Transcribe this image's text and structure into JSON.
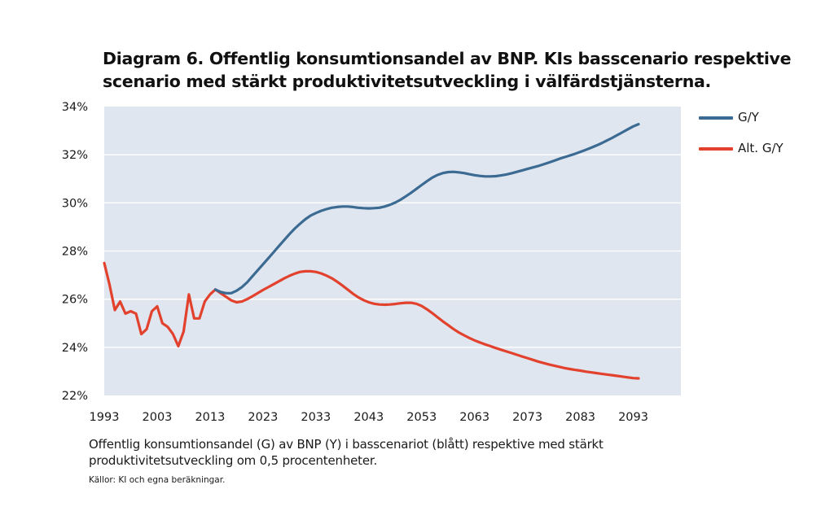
{
  "header": {
    "title_line1": "Diagram 6. Offentlig konsumtionsandel av BNP. KIs basscenario respektive",
    "title_line2": "scenario med stärkt produktivitetsutveckling i välfärdstjänsterna."
  },
  "footer": {
    "caption_line1": "Offentlig konsumtionsandel (G) av BNP (Y) i basscenariot (blått) respektive med stärkt",
    "caption_line2": "produktivitetsutveckling om 0,5 procentenheter.",
    "source": "Källor: KI och egna beräkningar."
  },
  "colors": {
    "plot_background": "#e0e6ef",
    "gridline": "#ffffff",
    "series_gy": "#3b6a92",
    "series_alt": "#e2422d"
  },
  "chart_data": {
    "type": "line",
    "title": "Diagram 6. Offentlig konsumtionsandel av BNP. KIs basscenario respektive scenario med stärkt produktivitetsutveckling i välfärdstjänsterna.",
    "xlabel": "",
    "ylabel": "",
    "xlim": [
      1993,
      2102
    ],
    "ylim": [
      22,
      34
    ],
    "x_ticks": [
      1993,
      2003,
      2013,
      2023,
      2033,
      2043,
      2053,
      2063,
      2073,
      2083,
      2093
    ],
    "x_tick_labels": [
      "1993",
      "2003",
      "2013",
      "2023",
      "2033",
      "2043",
      "2053",
      "2063",
      "2073",
      "2083",
      "2093"
    ],
    "y_ticks": [
      22,
      24,
      26,
      28,
      30,
      32,
      34
    ],
    "y_tick_labels": [
      "22%",
      "24%",
      "26%",
      "28%",
      "30%",
      "32%",
      "34%"
    ],
    "grid": true,
    "legend_position": "right",
    "series": [
      {
        "name": "G/Y",
        "color": "#3b6a92",
        "points": [
          [
            2014,
            26.4
          ],
          [
            2015,
            26.3
          ],
          [
            2016,
            26.25
          ],
          [
            2017,
            26.25
          ],
          [
            2018,
            26.35
          ],
          [
            2019,
            26.5
          ],
          [
            2020,
            26.7
          ],
          [
            2021,
            26.95
          ],
          [
            2022,
            27.2
          ],
          [
            2023,
            27.45
          ],
          [
            2024,
            27.7
          ],
          [
            2025,
            27.95
          ],
          [
            2026,
            28.2
          ],
          [
            2027,
            28.45
          ],
          [
            2028,
            28.7
          ],
          [
            2029,
            28.93
          ],
          [
            2030,
            29.13
          ],
          [
            2031,
            29.32
          ],
          [
            2032,
            29.47
          ],
          [
            2033,
            29.58
          ],
          [
            2034,
            29.67
          ],
          [
            2035,
            29.74
          ],
          [
            2036,
            29.8
          ],
          [
            2037,
            29.83
          ],
          [
            2038,
            29.85
          ],
          [
            2039,
            29.85
          ],
          [
            2040,
            29.83
          ],
          [
            2041,
            29.8
          ],
          [
            2042,
            29.78
          ],
          [
            2043,
            29.77
          ],
          [
            2044,
            29.78
          ],
          [
            2045,
            29.8
          ],
          [
            2046,
            29.85
          ],
          [
            2047,
            29.92
          ],
          [
            2048,
            30.01
          ],
          [
            2049,
            30.13
          ],
          [
            2050,
            30.27
          ],
          [
            2051,
            30.42
          ],
          [
            2052,
            30.58
          ],
          [
            2053,
            30.74
          ],
          [
            2054,
            30.9
          ],
          [
            2055,
            31.05
          ],
          [
            2056,
            31.16
          ],
          [
            2057,
            31.24
          ],
          [
            2058,
            31.28
          ],
          [
            2059,
            31.29
          ],
          [
            2060,
            31.27
          ],
          [
            2061,
            31.24
          ],
          [
            2062,
            31.19
          ],
          [
            2063,
            31.15
          ],
          [
            2064,
            31.12
          ],
          [
            2065,
            31.1
          ],
          [
            2066,
            31.1
          ],
          [
            2067,
            31.11
          ],
          [
            2068,
            31.14
          ],
          [
            2069,
            31.18
          ],
          [
            2070,
            31.23
          ],
          [
            2071,
            31.29
          ],
          [
            2072,
            31.35
          ],
          [
            2073,
            31.41
          ],
          [
            2074,
            31.47
          ],
          [
            2075,
            31.53
          ],
          [
            2076,
            31.6
          ],
          [
            2077,
            31.67
          ],
          [
            2078,
            31.75
          ],
          [
            2079,
            31.83
          ],
          [
            2080,
            31.9
          ],
          [
            2081,
            31.97
          ],
          [
            2082,
            32.04
          ],
          [
            2083,
            32.12
          ],
          [
            2084,
            32.2
          ],
          [
            2085,
            32.29
          ],
          [
            2086,
            32.38
          ],
          [
            2087,
            32.48
          ],
          [
            2088,
            32.59
          ],
          [
            2089,
            32.7
          ],
          [
            2090,
            32.82
          ],
          [
            2091,
            32.94
          ],
          [
            2092,
            33.06
          ],
          [
            2093,
            33.18
          ],
          [
            2094,
            33.27
          ]
        ]
      },
      {
        "name": "Alt. G/Y",
        "color": "#e2422d",
        "points": [
          [
            1993,
            27.5
          ],
          [
            1994,
            26.6
          ],
          [
            1995,
            25.55
          ],
          [
            1996,
            25.9
          ],
          [
            1997,
            25.4
          ],
          [
            1998,
            25.5
          ],
          [
            1999,
            25.4
          ],
          [
            2000,
            24.55
          ],
          [
            2001,
            24.75
          ],
          [
            2002,
            25.5
          ],
          [
            2003,
            25.7
          ],
          [
            2004,
            25.0
          ],
          [
            2005,
            24.85
          ],
          [
            2006,
            24.55
          ],
          [
            2007,
            24.05
          ],
          [
            2008,
            24.65
          ],
          [
            2009,
            26.2
          ],
          [
            2010,
            25.2
          ],
          [
            2011,
            25.2
          ],
          [
            2012,
            25.9
          ],
          [
            2013,
            26.2
          ],
          [
            2014,
            26.4
          ],
          [
            2015,
            26.25
          ],
          [
            2016,
            26.1
          ],
          [
            2017,
            25.95
          ],
          [
            2018,
            25.87
          ],
          [
            2019,
            25.9
          ],
          [
            2020,
            26.0
          ],
          [
            2021,
            26.12
          ],
          [
            2022,
            26.25
          ],
          [
            2023,
            26.38
          ],
          [
            2024,
            26.5
          ],
          [
            2025,
            26.62
          ],
          [
            2026,
            26.74
          ],
          [
            2027,
            26.86
          ],
          [
            2028,
            26.97
          ],
          [
            2029,
            27.06
          ],
          [
            2030,
            27.13
          ],
          [
            2031,
            27.16
          ],
          [
            2032,
            27.16
          ],
          [
            2033,
            27.13
          ],
          [
            2034,
            27.07
          ],
          [
            2035,
            26.98
          ],
          [
            2036,
            26.87
          ],
          [
            2037,
            26.73
          ],
          [
            2038,
            26.57
          ],
          [
            2039,
            26.4
          ],
          [
            2040,
            26.23
          ],
          [
            2041,
            26.08
          ],
          [
            2042,
            25.96
          ],
          [
            2043,
            25.87
          ],
          [
            2044,
            25.81
          ],
          [
            2045,
            25.78
          ],
          [
            2046,
            25.77
          ],
          [
            2047,
            25.78
          ],
          [
            2048,
            25.8
          ],
          [
            2049,
            25.83
          ],
          [
            2050,
            25.85
          ],
          [
            2051,
            25.85
          ],
          [
            2052,
            25.81
          ],
          [
            2053,
            25.72
          ],
          [
            2054,
            25.58
          ],
          [
            2055,
            25.42
          ],
          [
            2056,
            25.25
          ],
          [
            2057,
            25.08
          ],
          [
            2058,
            24.92
          ],
          [
            2059,
            24.76
          ],
          [
            2060,
            24.62
          ],
          [
            2061,
            24.5
          ],
          [
            2062,
            24.39
          ],
          [
            2063,
            24.29
          ],
          [
            2064,
            24.2
          ],
          [
            2065,
            24.12
          ],
          [
            2066,
            24.05
          ],
          [
            2067,
            23.97
          ],
          [
            2068,
            23.9
          ],
          [
            2069,
            23.83
          ],
          [
            2070,
            23.76
          ],
          [
            2071,
            23.69
          ],
          [
            2072,
            23.62
          ],
          [
            2073,
            23.55
          ],
          [
            2074,
            23.48
          ],
          [
            2075,
            23.41
          ],
          [
            2076,
            23.35
          ],
          [
            2077,
            23.29
          ],
          [
            2078,
            23.24
          ],
          [
            2079,
            23.19
          ],
          [
            2080,
            23.14
          ],
          [
            2081,
            23.1
          ],
          [
            2082,
            23.06
          ],
          [
            2083,
            23.03
          ],
          [
            2084,
            22.99
          ],
          [
            2085,
            22.96
          ],
          [
            2086,
            22.93
          ],
          [
            2087,
            22.9
          ],
          [
            2088,
            22.87
          ],
          [
            2089,
            22.84
          ],
          [
            2090,
            22.81
          ],
          [
            2091,
            22.78
          ],
          [
            2092,
            22.75
          ],
          [
            2093,
            22.72
          ],
          [
            2094,
            22.71
          ]
        ]
      }
    ]
  }
}
